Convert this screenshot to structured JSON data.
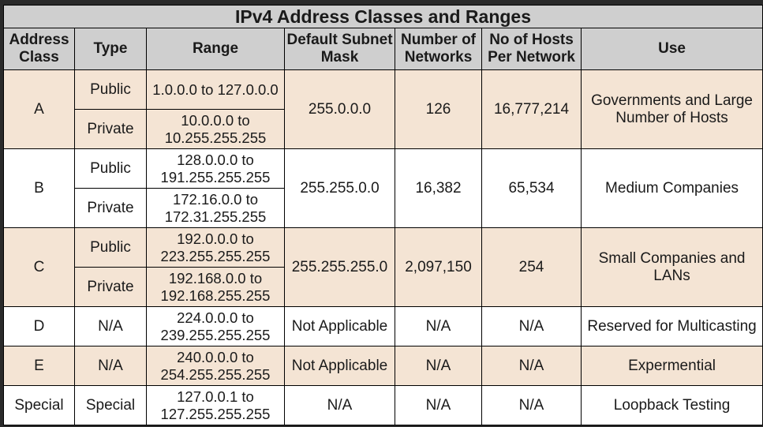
{
  "title": "IPv4 Address Classes and Ranges",
  "headers": {
    "address_class": "Address Class",
    "type": "Type",
    "range": "Range",
    "mask": "Default Subnet Mask",
    "networks": "Number of Networks",
    "hosts": "No of Hosts Per Network",
    "use": "Use"
  },
  "rows": {
    "a": {
      "class": "A",
      "public_type": "Public",
      "public_range": "1.0.0.0 to 127.0.0.0",
      "private_type": "Private",
      "private_range": "10.0.0.0 to 10.255.255.255",
      "mask": "255.0.0.0",
      "networks": "126",
      "hosts": "16,777,214",
      "use": "Governments and Large Number of Hosts"
    },
    "b": {
      "class": "B",
      "public_type": "Public",
      "public_range": "128.0.0.0 to 191.255.255.255",
      "private_type": "Private",
      "private_range": "172.16.0.0 to 172.31.255.255",
      "mask": "255.255.0.0",
      "networks": "16,382",
      "hosts": "65,534",
      "use": "Medium Companies"
    },
    "c": {
      "class": "C",
      "public_type": "Public",
      "public_range": "192.0.0.0 to 223.255.255.255",
      "private_type": "Private",
      "private_range": "192.168.0.0 to 192.168.255.255",
      "mask": "255.255.255.0",
      "networks": "2,097,150",
      "hosts": "254",
      "use": "Small Companies and LANs"
    },
    "d": {
      "class": "D",
      "type": "N/A",
      "range": "224.0.0.0 to 239.255.255.255",
      "mask": "Not Applicable",
      "networks": "N/A",
      "hosts": "N/A",
      "use": "Reserved for Multicasting"
    },
    "e": {
      "class": "E",
      "type": "N/A",
      "range": "240.0.0.0 to 254.255.255.255",
      "mask": "Not Applicable",
      "networks": "N/A",
      "hosts": "N/A",
      "use": "Expermential"
    },
    "special": {
      "class": "Special",
      "type": "Special",
      "range": "127.0.0.1 to 127.255.255.255",
      "mask": "N/A",
      "networks": "N/A",
      "hosts": "N/A",
      "use": "Loopback Testing"
    }
  }
}
